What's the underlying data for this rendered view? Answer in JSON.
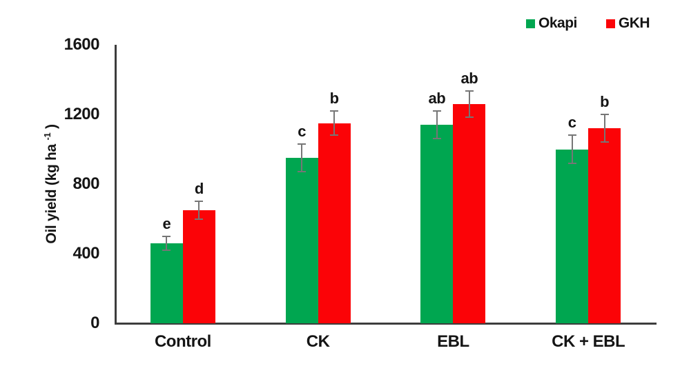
{
  "axes": {
    "y_title_main": "Oil yield (kg ha ",
    "y_title_sup": "-1",
    "y_title_close": " )"
  },
  "chart_data": {
    "type": "bar",
    "title": "",
    "categories": [
      "Control",
      "CK",
      "EBL",
      "CK + EBL"
    ],
    "series": [
      {
        "name": "Okapi",
        "color": "#00A650",
        "values": [
          460,
          950,
          1140,
          1000
        ],
        "errors": [
          40,
          80,
          80,
          80
        ],
        "letters": [
          "e",
          "c",
          "ab",
          "c"
        ]
      },
      {
        "name": "GKH",
        "color": "#FB0307",
        "values": [
          650,
          1150,
          1260,
          1120
        ],
        "errors": [
          50,
          70,
          75,
          80
        ],
        "letters": [
          "d",
          "b",
          "ab",
          "b"
        ]
      }
    ],
    "xlabel": "",
    "ylabel": "Oil yield (kg ha -1 )",
    "ylim": [
      0,
      1600
    ],
    "yticks": [
      0,
      400,
      800,
      1200,
      1600
    ],
    "grid": false,
    "legend_position": "top-right",
    "error_bar_color": "#767676",
    "axis_color": "#3d3d3d",
    "text_color": "#151515"
  }
}
